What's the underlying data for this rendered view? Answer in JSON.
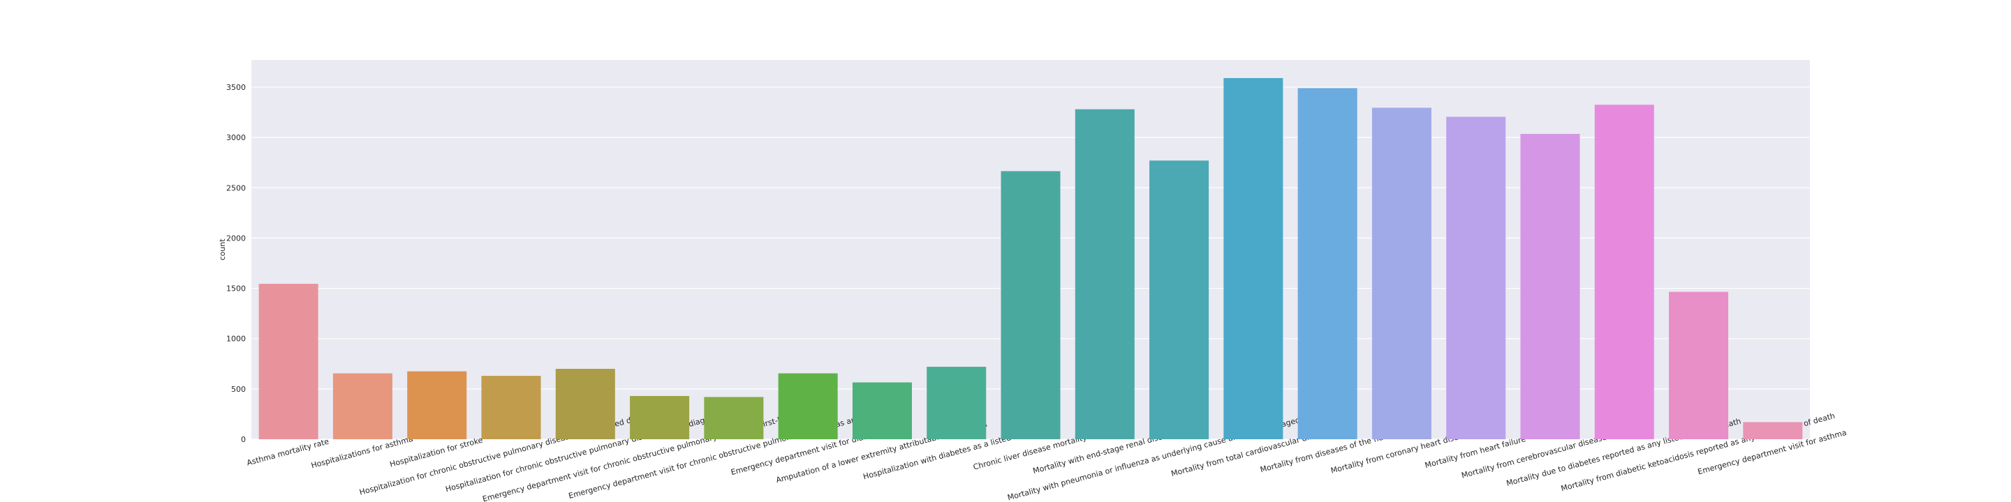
{
  "chart_data": {
    "type": "bar",
    "y_label": "count",
    "categories": [
      "Asthma mortality rate",
      "Hospitalizations for asthma",
      "Hospitalization for stroke",
      "Hospitalization for chronic obstructive pulmonary disease as first-listed diagnosis",
      "Hospitalization for chronic obstructive pulmonary disease as any diagnosis",
      "Emergency department visit for chronic obstructive pulmonary disease as first-listed diagnosis",
      "Emergency department visit for chronic obstructive pulmonary disease as any diagnosis",
      "Emergency department visit for diabetes",
      "Amputation of a lower extremity attributable to diabetes",
      "Hospitalization with diabetes as a listed diagnosis",
      "Chronic liver disease mortality",
      "Mortality with end-stage renal disease",
      "Mortality with pneumonia or influenza as underlying cause among adults aged >= 65 years",
      "Mortality from total cardiovascular diseases",
      "Mortality from diseases of the heart",
      "Mortality from coronary heart disease",
      "Mortality from heart failure",
      "Mortality from cerebrovascular disease (stroke)",
      "Mortality due to diabetes reported as any listed cause of death",
      "Mortality from diabetic ketoacidosis reported as any listed cause of death",
      "Emergency department visit for asthma"
    ],
    "values": [
      1545,
      655,
      675,
      630,
      700,
      430,
      420,
      655,
      565,
      720,
      2665,
      3280,
      2770,
      3590,
      3490,
      3295,
      3205,
      3035,
      3325,
      1465,
      170
    ],
    "colors": [
      "#e8939c",
      "#e8977f",
      "#dc9350",
      "#c19c4c",
      "#ab9c47",
      "#9ba445",
      "#86ac47",
      "#5fb246",
      "#4cb17a",
      "#4aae93",
      "#4aa99f",
      "#4aa9a8",
      "#4aa9b3",
      "#4aa8c8",
      "#6aabe0",
      "#a0aae8",
      "#baa3ea",
      "#d596e6",
      "#e78ade",
      "#e88fc8",
      "#e894b2"
    ],
    "ylim": [
      0,
      3770
    ],
    "yticks": [
      0,
      500,
      1000,
      1500,
      2000,
      2500,
      3000,
      3500
    ],
    "grid": true
  }
}
